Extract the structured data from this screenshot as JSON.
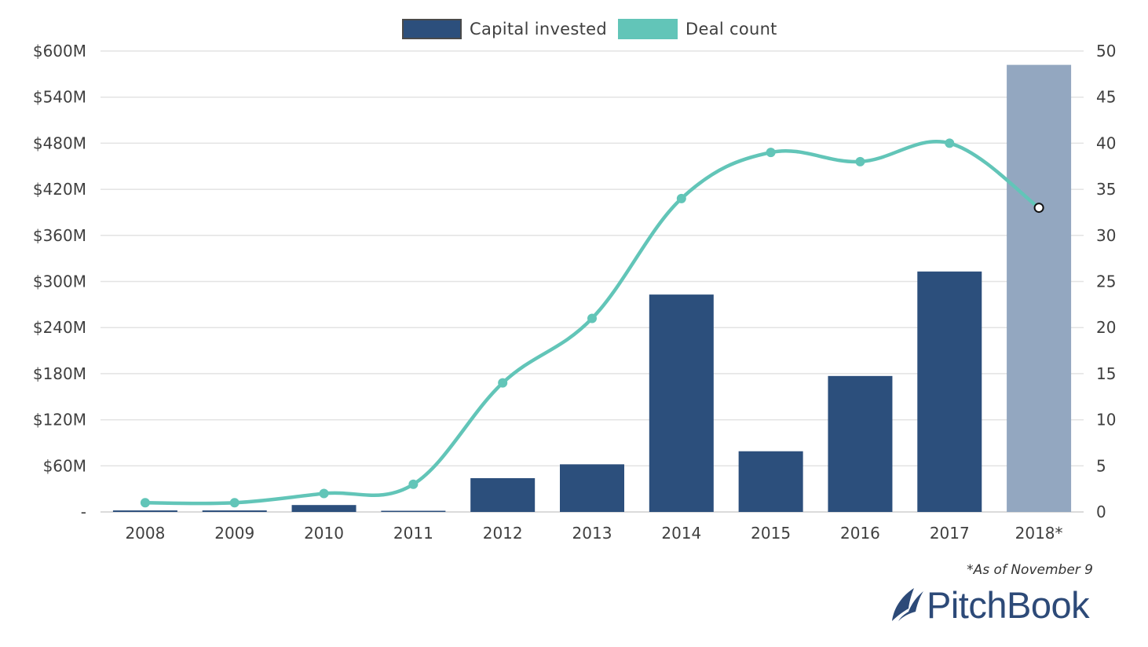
{
  "colors": {
    "capital_bar": "#2c4f7c",
    "capital_bar_partial": "#93a7c0",
    "deal_line": "#62c5b8",
    "grid": "#e3e3e3",
    "axis_text": "#3f3f3f",
    "logo": "#2d4a78"
  },
  "legend": {
    "capital_label": "Capital invested",
    "deal_label": "Deal count"
  },
  "chart_data": {
    "type": "bar",
    "categories": [
      "2008",
      "2009",
      "2010",
      "2011",
      "2012",
      "2013",
      "2014",
      "2015",
      "2016",
      "2017",
      "2018*"
    ],
    "series": [
      {
        "name": "Capital invested",
        "axis": "left",
        "unit": "$M",
        "values": [
          2,
          2,
          9,
          1,
          44,
          62,
          283,
          79,
          177,
          313,
          582
        ],
        "highlight_last": true
      },
      {
        "name": "Deal count",
        "axis": "right",
        "type": "line",
        "smooth": true,
        "values": [
          1,
          1,
          2,
          3,
          14,
          21,
          34,
          39,
          38,
          40,
          33
        ],
        "last_point_marker": "hollow"
      }
    ],
    "y_left": {
      "range": [
        0,
        600
      ],
      "ticks": [
        0,
        60,
        120,
        180,
        240,
        300,
        360,
        420,
        480,
        540,
        600
      ],
      "tick_labels": [
        "-",
        "$60M",
        "$120M",
        "$180M",
        "$240M",
        "$300M",
        "$360M",
        "$420M",
        "$480M",
        "$540M",
        "$600M"
      ]
    },
    "y_right": {
      "range": [
        0,
        50
      ],
      "ticks": [
        0,
        5,
        10,
        15,
        20,
        25,
        30,
        35,
        40,
        45,
        50
      ],
      "tick_labels": [
        "0",
        "5",
        "10",
        "15",
        "20",
        "25",
        "30",
        "35",
        "40",
        "45",
        "50"
      ]
    },
    "grid": "horizontal",
    "legend_position": "top-center",
    "footnote": "*As of November 9"
  },
  "logo": {
    "text": "PitchBook"
  }
}
